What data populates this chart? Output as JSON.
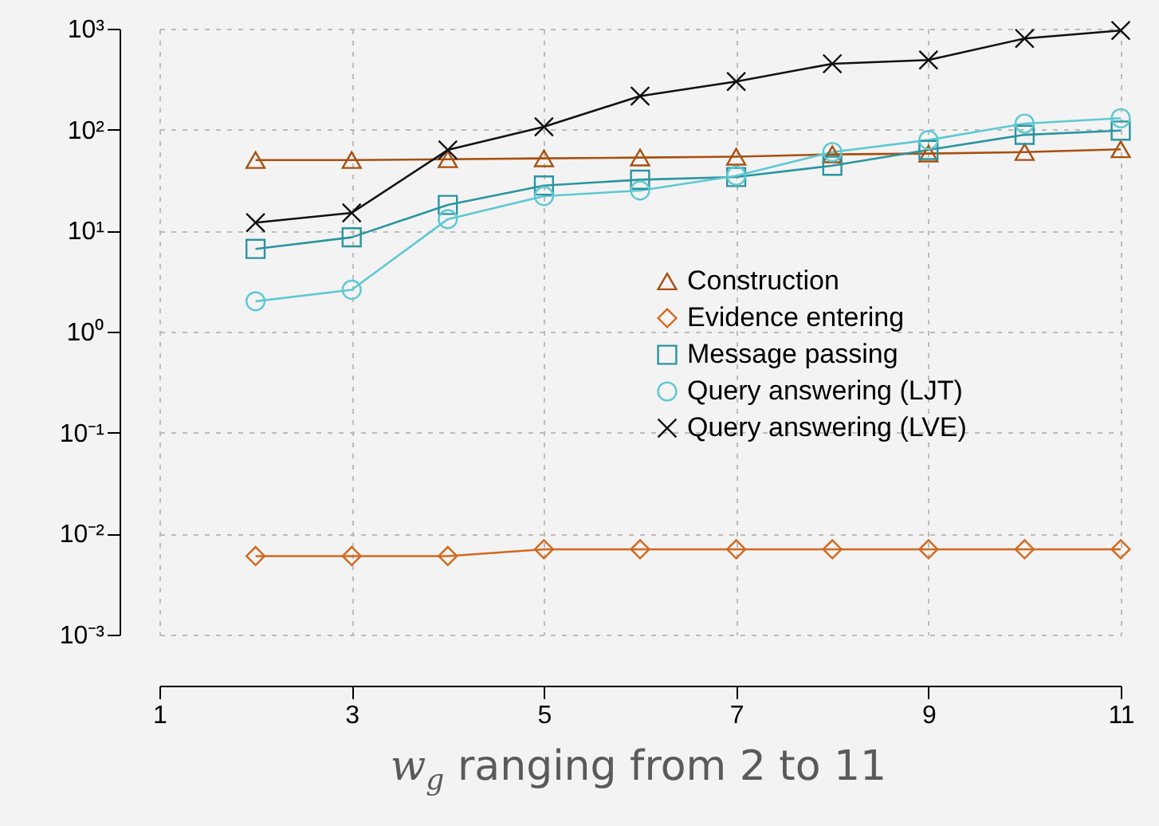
{
  "chart_data": {
    "type": "line",
    "xlabel": "w$_{g}$ ranging from 2 to 11",
    "x": [
      2,
      3,
      4,
      5,
      6,
      7,
      8,
      9,
      10,
      11
    ],
    "xlim": [
      1,
      11
    ],
    "xticks": [
      1,
      3,
      5,
      7,
      9,
      11
    ],
    "ylim": [
      0.001,
      1000
    ],
    "log": true,
    "yticks": [
      {
        "value": 0.001,
        "label": "10⁻³"
      },
      {
        "value": 0.01,
        "label": "10⁻²"
      },
      {
        "value": 0.1,
        "label": "10⁻¹"
      },
      {
        "value": 1,
        "label": "10⁰"
      },
      {
        "value": 10,
        "label": "10¹"
      },
      {
        "value": 100,
        "label": "10²"
      },
      {
        "value": 1000,
        "label": "10³"
      }
    ],
    "grid": true,
    "legend": "right",
    "series": [
      {
        "name": "Construction",
        "color": "#a8500f",
        "marker": "triangle",
        "values": [
          50,
          50,
          51,
          52,
          53,
          54,
          57,
          58,
          60,
          64
        ]
      },
      {
        "name": "Evidence entering",
        "color": "#d2691e",
        "marker": "diamond",
        "values": [
          0.006,
          0.006,
          0.006,
          0.007,
          0.007,
          0.007,
          0.007,
          0.007,
          0.007,
          0.007
        ]
      },
      {
        "name": "Message passing",
        "color": "#2a95a0",
        "marker": "square",
        "values": [
          6.6,
          8.6,
          18,
          28,
          32,
          34,
          44,
          63,
          89,
          98
        ]
      },
      {
        "name": "Query answering (LJT)",
        "color": "#5ec8d2",
        "marker": "circle",
        "values": [
          2.0,
          2.6,
          13,
          22,
          25,
          35,
          60,
          79,
          115,
          130
        ]
      },
      {
        "name": "Query answering (LVE)",
        "color": "#111111",
        "marker": "cross",
        "values": [
          12,
          15,
          63,
          107,
          215,
          300,
          450,
          490,
          800,
          960
        ]
      }
    ]
  }
}
